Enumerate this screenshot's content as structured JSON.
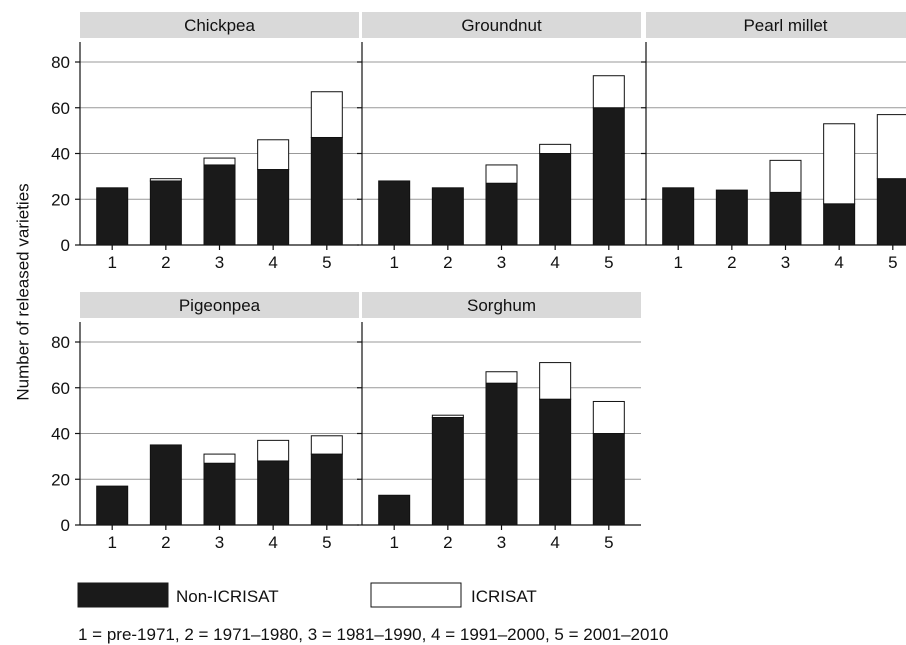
{
  "chart_data": {
    "type": "bar",
    "stacked": true,
    "ylabel": "Number of released varieties",
    "xlabel": "",
    "ylim": [
      0,
      80
    ],
    "yticks": [
      0,
      20,
      40,
      60,
      80
    ],
    "categories": [
      "1",
      "2",
      "3",
      "4",
      "5"
    ],
    "grid": "horizontal",
    "colors": {
      "Non-ICRISAT": "#1a1a1a",
      "ICRISAT": "#ffffff",
      "panel_header": "#d9d9d9",
      "grid": "#999999"
    },
    "legend": {
      "placement": "bottom",
      "entries": [
        {
          "name": "Non-ICRISAT",
          "color": "#1a1a1a"
        },
        {
          "name": "ICRISAT",
          "color": "#ffffff"
        }
      ]
    },
    "note": "1 = pre-1971, 2 = 1971–1980, 3 = 1981–1990, 4 = 1991–2000, 5 = 2001–2010",
    "panels": [
      {
        "title": "Chickpea",
        "series": [
          {
            "name": "Non-ICRISAT",
            "values": [
              25,
              28,
              35,
              33,
              47
            ]
          },
          {
            "name": "ICRISAT",
            "values": [
              0,
              1,
              3,
              13,
              20
            ]
          }
        ]
      },
      {
        "title": "Groundnut",
        "series": [
          {
            "name": "Non-ICRISAT",
            "values": [
              28,
              25,
              27,
              40,
              60
            ]
          },
          {
            "name": "ICRISAT",
            "values": [
              0,
              0,
              8,
              4,
              14
            ]
          }
        ]
      },
      {
        "title": "Pearl millet",
        "series": [
          {
            "name": "Non-ICRISAT",
            "values": [
              25,
              24,
              23,
              18,
              29
            ]
          },
          {
            "name": "ICRISAT",
            "values": [
              0,
              0,
              14,
              35,
              28
            ]
          }
        ]
      },
      {
        "title": "Pigeonpea",
        "series": [
          {
            "name": "Non-ICRISAT",
            "values": [
              17,
              35,
              27,
              28,
              31
            ]
          },
          {
            "name": "ICRISAT",
            "values": [
              0,
              0,
              4,
              9,
              8
            ]
          }
        ]
      },
      {
        "title": "Sorghum",
        "series": [
          {
            "name": "Non-ICRISAT",
            "values": [
              13,
              47,
              62,
              55,
              40
            ]
          },
          {
            "name": "ICRISAT",
            "values": [
              0,
              1,
              5,
              16,
              14
            ]
          }
        ]
      }
    ]
  }
}
